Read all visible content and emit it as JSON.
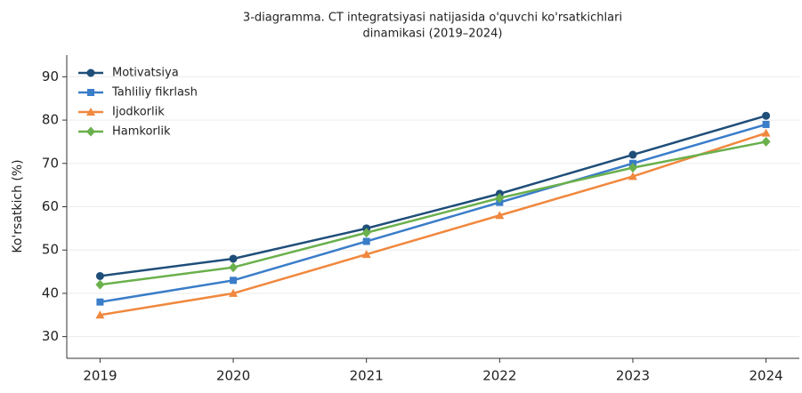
{
  "chart_data": {
    "type": "line",
    "title": [
      "3-diagramma. CT integratsiyasi natijasida o'quvchi ko'rsatkichlari",
      "dinamikasi (2019–2024)"
    ],
    "y_label": "Ko'rsatkich (%)",
    "x": [
      2019,
      2020,
      2021,
      2022,
      2023,
      2024
    ],
    "xlim": [
      2018.75,
      2024.25
    ],
    "xticks": [
      2019,
      2020,
      2021,
      2022,
      2023,
      2024
    ],
    "ylim": [
      25,
      95
    ],
    "yticks": [
      30,
      40,
      50,
      60,
      70,
      80,
      90
    ],
    "grid": true,
    "legend": "upper-left",
    "series": [
      {
        "name": "Motivatsiya",
        "color": "#1f4e79",
        "marker": "circle",
        "values": [
          44,
          48,
          55,
          63,
          72,
          81
        ]
      },
      {
        "name": "Tahliliy fikrlash",
        "color": "#3a7dc9",
        "marker": "square",
        "values": [
          38,
          43,
          52,
          61,
          70,
          79
        ]
      },
      {
        "name": "Ijodkorlik",
        "color": "#f0883e",
        "marker": "triangle",
        "values": [
          35,
          40,
          49,
          58,
          67,
          77
        ]
      },
      {
        "name": "Hamkorlik",
        "color": "#6ab04c",
        "marker": "diamond",
        "values": [
          42,
          46,
          54,
          62,
          69,
          75
        ]
      }
    ]
  }
}
